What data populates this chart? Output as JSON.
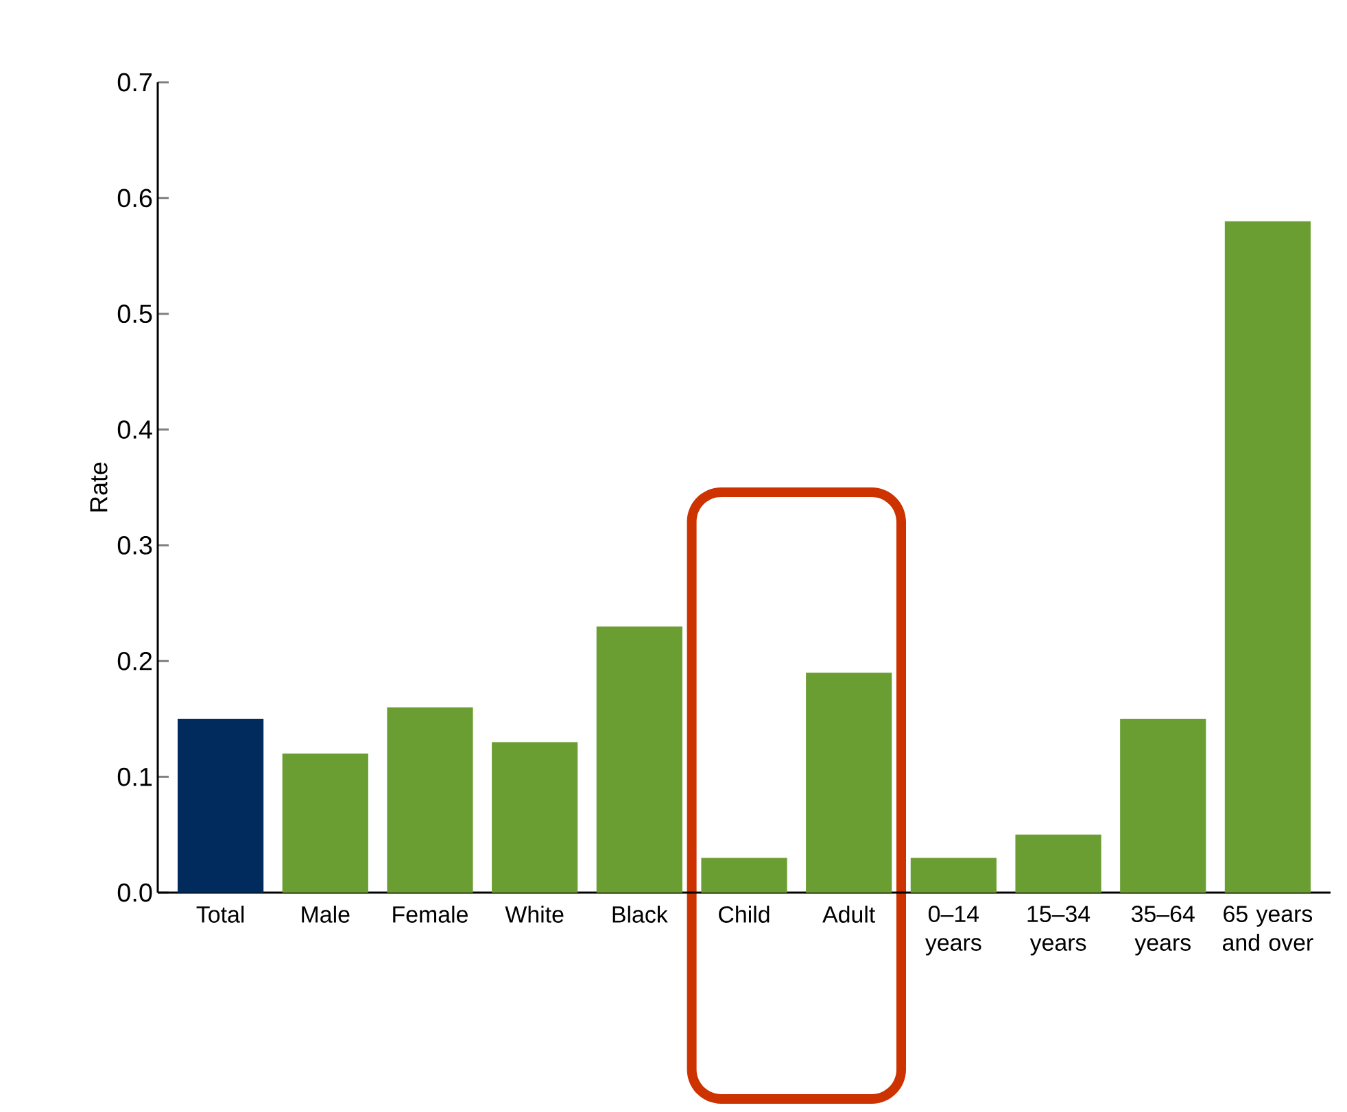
{
  "chart_data": {
    "type": "bar",
    "ylabel": "Rate",
    "categories": [
      "Total",
      "Male",
      "Female",
      "White",
      "Black",
      "Child",
      "Adult",
      "0–14 years",
      "15–34 years",
      "35–64 years",
      "65 years and over"
    ],
    "values": [
      0.15,
      0.12,
      0.16,
      0.13,
      0.23,
      0.03,
      0.19,
      0.03,
      0.05,
      0.15,
      0.58
    ],
    "colors": [
      "#002b5c",
      "#6b9e32",
      "#6b9e32",
      "#6b9e32",
      "#6b9e32",
      "#6b9e32",
      "#6b9e32",
      "#6b9e32",
      "#6b9e32",
      "#6b9e32",
      "#6b9e32"
    ],
    "ylim": [
      0,
      0.7
    ],
    "yticks": [
      {
        "value": 0,
        "label": "0.0"
      },
      0.1,
      0.2,
      0.3,
      0.4,
      0.5,
      0.6,
      0.7
    ]
  }
}
